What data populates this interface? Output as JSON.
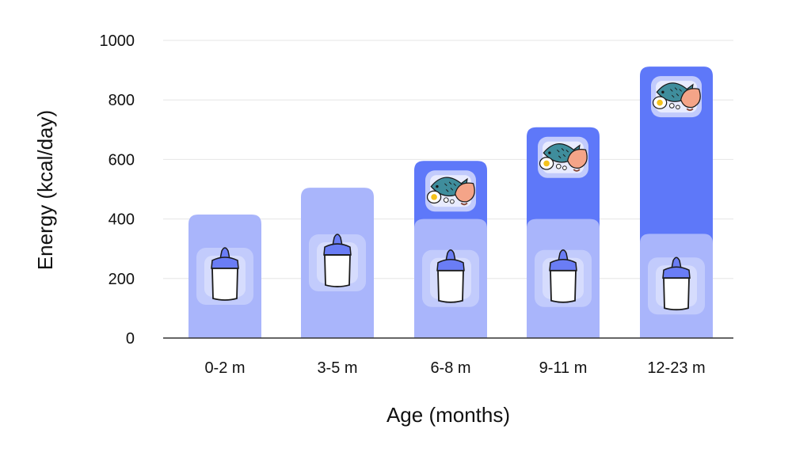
{
  "chart_data": {
    "type": "bar",
    "stacked": true,
    "title": "",
    "xlabel": "Age (months)",
    "ylabel": "Energy (kcal/day)",
    "categories": [
      "0-2 m",
      "3-5 m",
      "6-8 m",
      "9-11 m",
      "12-23 m"
    ],
    "series": [
      {
        "icon": "baby-bottle-icon",
        "color": "#a9b5fb",
        "values": [
          415,
          505,
          400,
          400,
          350
        ]
      },
      {
        "icon": "complementary-food-icon",
        "color": "#5e78f9",
        "values": [
          0,
          0,
          195,
          308,
          562
        ]
      }
    ],
    "ylim": [
      0,
      1000
    ],
    "yticks": [
      0,
      200,
      400,
      600,
      800,
      1000
    ],
    "grid": true,
    "legend": "none"
  }
}
